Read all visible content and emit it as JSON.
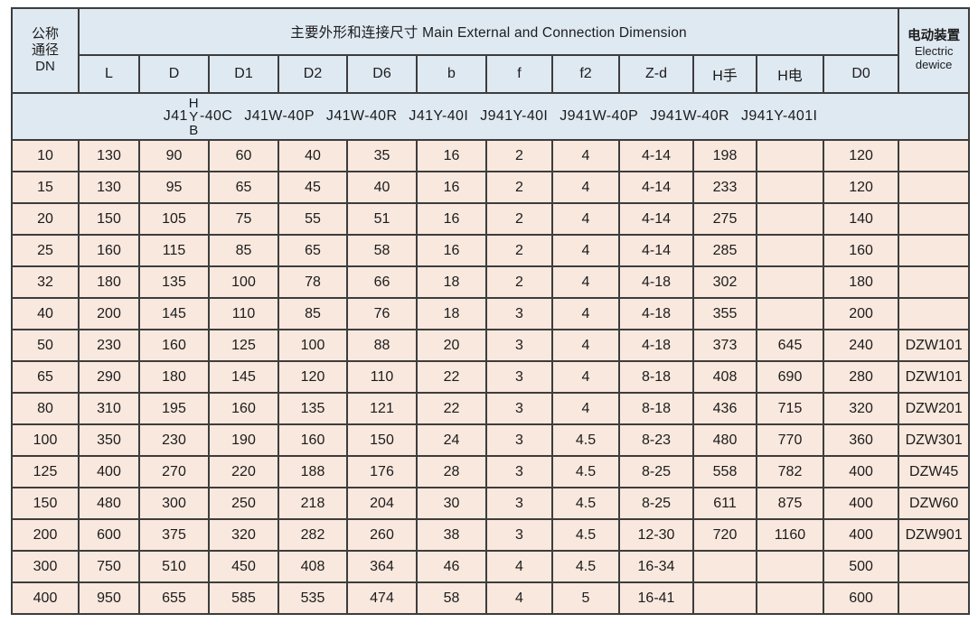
{
  "colors": {
    "header_bg": "#dfe9f2",
    "body_bg": "#f9e8de",
    "border": "#3d3d3d",
    "text": "#1c1c1c"
  },
  "table": {
    "dn_header": {
      "line1": "公称",
      "line2": "通径",
      "line3": "DN"
    },
    "main_header": "主要外形和连接尺寸 Main External and Connection Dimension",
    "electric_header": {
      "zh": "电动装置",
      "en1": "Electric",
      "en2": "dewice"
    },
    "columns": [
      "L",
      "D",
      "D1",
      "D2",
      "D6",
      "b",
      "f",
      "f2",
      "Z-d",
      "H手",
      "H电",
      "D0"
    ],
    "model_row": {
      "prefix": "J41",
      "stack": [
        "H",
        "Y",
        "B"
      ],
      "suffix": "-40C",
      "models": [
        "J41W-40P",
        "J41W-40R",
        "J41Y-40I",
        "J941Y-40I",
        "J941W-40P",
        "J941W-40R",
        "J941Y-401I"
      ]
    },
    "rows": [
      [
        "10",
        "130",
        "90",
        "60",
        "40",
        "35",
        "16",
        "2",
        "4",
        "4-14",
        "198",
        "",
        "120",
        ""
      ],
      [
        "15",
        "130",
        "95",
        "65",
        "45",
        "40",
        "16",
        "2",
        "4",
        "4-14",
        "233",
        "",
        "120",
        ""
      ],
      [
        "20",
        "150",
        "105",
        "75",
        "55",
        "51",
        "16",
        "2",
        "4",
        "4-14",
        "275",
        "",
        "140",
        ""
      ],
      [
        "25",
        "160",
        "115",
        "85",
        "65",
        "58",
        "16",
        "2",
        "4",
        "4-14",
        "285",
        "",
        "160",
        ""
      ],
      [
        "32",
        "180",
        "135",
        "100",
        "78",
        "66",
        "18",
        "2",
        "4",
        "4-18",
        "302",
        "",
        "180",
        ""
      ],
      [
        "40",
        "200",
        "145",
        "110",
        "85",
        "76",
        "18",
        "3",
        "4",
        "4-18",
        "355",
        "",
        "200",
        ""
      ],
      [
        "50",
        "230",
        "160",
        "125",
        "100",
        "88",
        "20",
        "3",
        "4",
        "4-18",
        "373",
        "645",
        "240",
        "DZW101"
      ],
      [
        "65",
        "290",
        "180",
        "145",
        "120",
        "110",
        "22",
        "3",
        "4",
        "8-18",
        "408",
        "690",
        "280",
        "DZW101"
      ],
      [
        "80",
        "310",
        "195",
        "160",
        "135",
        "121",
        "22",
        "3",
        "4",
        "8-18",
        "436",
        "715",
        "320",
        "DZW201"
      ],
      [
        "100",
        "350",
        "230",
        "190",
        "160",
        "150",
        "24",
        "3",
        "4.5",
        "8-23",
        "480",
        "770",
        "360",
        "DZW301"
      ],
      [
        "125",
        "400",
        "270",
        "220",
        "188",
        "176",
        "28",
        "3",
        "4.5",
        "8-25",
        "558",
        "782",
        "400",
        "DZW45"
      ],
      [
        "150",
        "480",
        "300",
        "250",
        "218",
        "204",
        "30",
        "3",
        "4.5",
        "8-25",
        "611",
        "875",
        "400",
        "DZW60"
      ],
      [
        "200",
        "600",
        "375",
        "320",
        "282",
        "260",
        "38",
        "3",
        "4.5",
        "12-30",
        "720",
        "1160",
        "400",
        "DZW901"
      ],
      [
        "300",
        "750",
        "510",
        "450",
        "408",
        "364",
        "46",
        "4",
        "4.5",
        "16-34",
        "",
        "",
        "500",
        ""
      ],
      [
        "400",
        "950",
        "655",
        "585",
        "535",
        "474",
        "58",
        "4",
        "5",
        "16-41",
        "",
        "",
        "600",
        ""
      ]
    ]
  },
  "chart_data": {
    "type": "table",
    "title": "主要外形和连接尺寸 Main External and Connection Dimension",
    "columns": [
      "DN",
      "L",
      "D",
      "D1",
      "D2",
      "D6",
      "b",
      "f",
      "f2",
      "Z-d",
      "H手",
      "H电",
      "D0",
      "Electric dewice"
    ],
    "rows": [
      [
        "10",
        "130",
        "90",
        "60",
        "40",
        "35",
        "16",
        "2",
        "4",
        "4-14",
        "198",
        "",
        "120",
        ""
      ],
      [
        "15",
        "130",
        "95",
        "65",
        "45",
        "40",
        "16",
        "2",
        "4",
        "4-14",
        "233",
        "",
        "120",
        ""
      ],
      [
        "20",
        "150",
        "105",
        "75",
        "55",
        "51",
        "16",
        "2",
        "4",
        "4-14",
        "275",
        "",
        "140",
        ""
      ],
      [
        "25",
        "160",
        "115",
        "85",
        "65",
        "58",
        "16",
        "2",
        "4",
        "4-14",
        "285",
        "",
        "160",
        ""
      ],
      [
        "32",
        "180",
        "135",
        "100",
        "78",
        "66",
        "18",
        "2",
        "4",
        "4-18",
        "302",
        "",
        "180",
        ""
      ],
      [
        "40",
        "200",
        "145",
        "110",
        "85",
        "76",
        "18",
        "3",
        "4",
        "4-18",
        "355",
        "",
        "200",
        ""
      ],
      [
        "50",
        "230",
        "160",
        "125",
        "100",
        "88",
        "20",
        "3",
        "4",
        "4-18",
        "373",
        "645",
        "240",
        "DZW101"
      ],
      [
        "65",
        "290",
        "180",
        "145",
        "120",
        "110",
        "22",
        "3",
        "4",
        "8-18",
        "408",
        "690",
        "280",
        "DZW101"
      ],
      [
        "80",
        "310",
        "195",
        "160",
        "135",
        "121",
        "22",
        "3",
        "4",
        "8-18",
        "436",
        "715",
        "320",
        "DZW201"
      ],
      [
        "100",
        "350",
        "230",
        "190",
        "160",
        "150",
        "24",
        "3",
        "4.5",
        "8-23",
        "480",
        "770",
        "360",
        "DZW301"
      ],
      [
        "125",
        "400",
        "270",
        "220",
        "188",
        "176",
        "28",
        "3",
        "4.5",
        "8-25",
        "558",
        "782",
        "400",
        "DZW45"
      ],
      [
        "150",
        "480",
        "300",
        "250",
        "218",
        "204",
        "30",
        "3",
        "4.5",
        "8-25",
        "611",
        "875",
        "400",
        "DZW60"
      ],
      [
        "200",
        "600",
        "375",
        "320",
        "282",
        "260",
        "38",
        "3",
        "4.5",
        "12-30",
        "720",
        "1160",
        "400",
        "DZW901"
      ],
      [
        "300",
        "750",
        "510",
        "450",
        "408",
        "364",
        "46",
        "4",
        "4.5",
        "16-34",
        "",
        "",
        "500",
        ""
      ],
      [
        "400",
        "950",
        "655",
        "585",
        "535",
        "474",
        "58",
        "4",
        "5",
        "16-41",
        "",
        "",
        "600",
        ""
      ]
    ]
  }
}
